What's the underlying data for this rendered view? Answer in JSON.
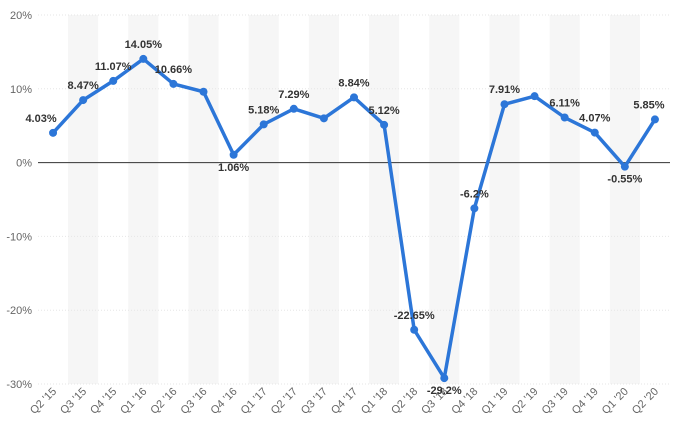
{
  "chart_data": {
    "type": "line",
    "title": "",
    "xlabel": "",
    "ylabel": "",
    "categories": [
      "Q2 '15",
      "Q3 '15",
      "Q4 '15",
      "Q1 '16",
      "Q2 '16",
      "Q3 '16",
      "Q4 '16",
      "Q1 '17",
      "Q2 '17",
      "Q3 '17",
      "Q4 '17",
      "Q1 '18",
      "Q2 '18",
      "Q3 '18",
      "Q4 '18",
      "Q1 '19",
      "Q2 '19",
      "Q3 '19",
      "Q4 '19",
      "Q1 '20",
      "Q2 '20"
    ],
    "values": [
      4.03,
      8.47,
      11.07,
      14.05,
      10.66,
      9.6,
      1.06,
      5.18,
      7.29,
      6.0,
      8.84,
      5.12,
      -22.65,
      -29.2,
      -6.2,
      7.91,
      9.0,
      6.11,
      4.07,
      -0.55,
      5.85
    ],
    "data_labels": [
      "4.03%",
      "8.47%",
      "11.07%",
      "14.05%",
      "10.66%",
      "",
      "1.06%",
      "5.18%",
      "7.29%",
      "",
      "8.84%",
      "5.12%",
      "-22.65%",
      "-29.2%",
      "-6.2%",
      "7.91%",
      "",
      "6.11%",
      "4.07%",
      "-0.55%",
      "5.85%"
    ],
    "ylim": [
      -30,
      20
    ],
    "yticks": [
      -30,
      -20,
      -10,
      0,
      10,
      20
    ],
    "ytick_labels": [
      "-30%",
      "-20%",
      "-10%",
      "0%",
      "10%",
      "20%"
    ],
    "grid": true,
    "legend": "none",
    "colors": {
      "line": "#2c76d8",
      "band": "#f6f6f6",
      "grid": "#e6e6e6",
      "zero_line": "#333333"
    }
  }
}
